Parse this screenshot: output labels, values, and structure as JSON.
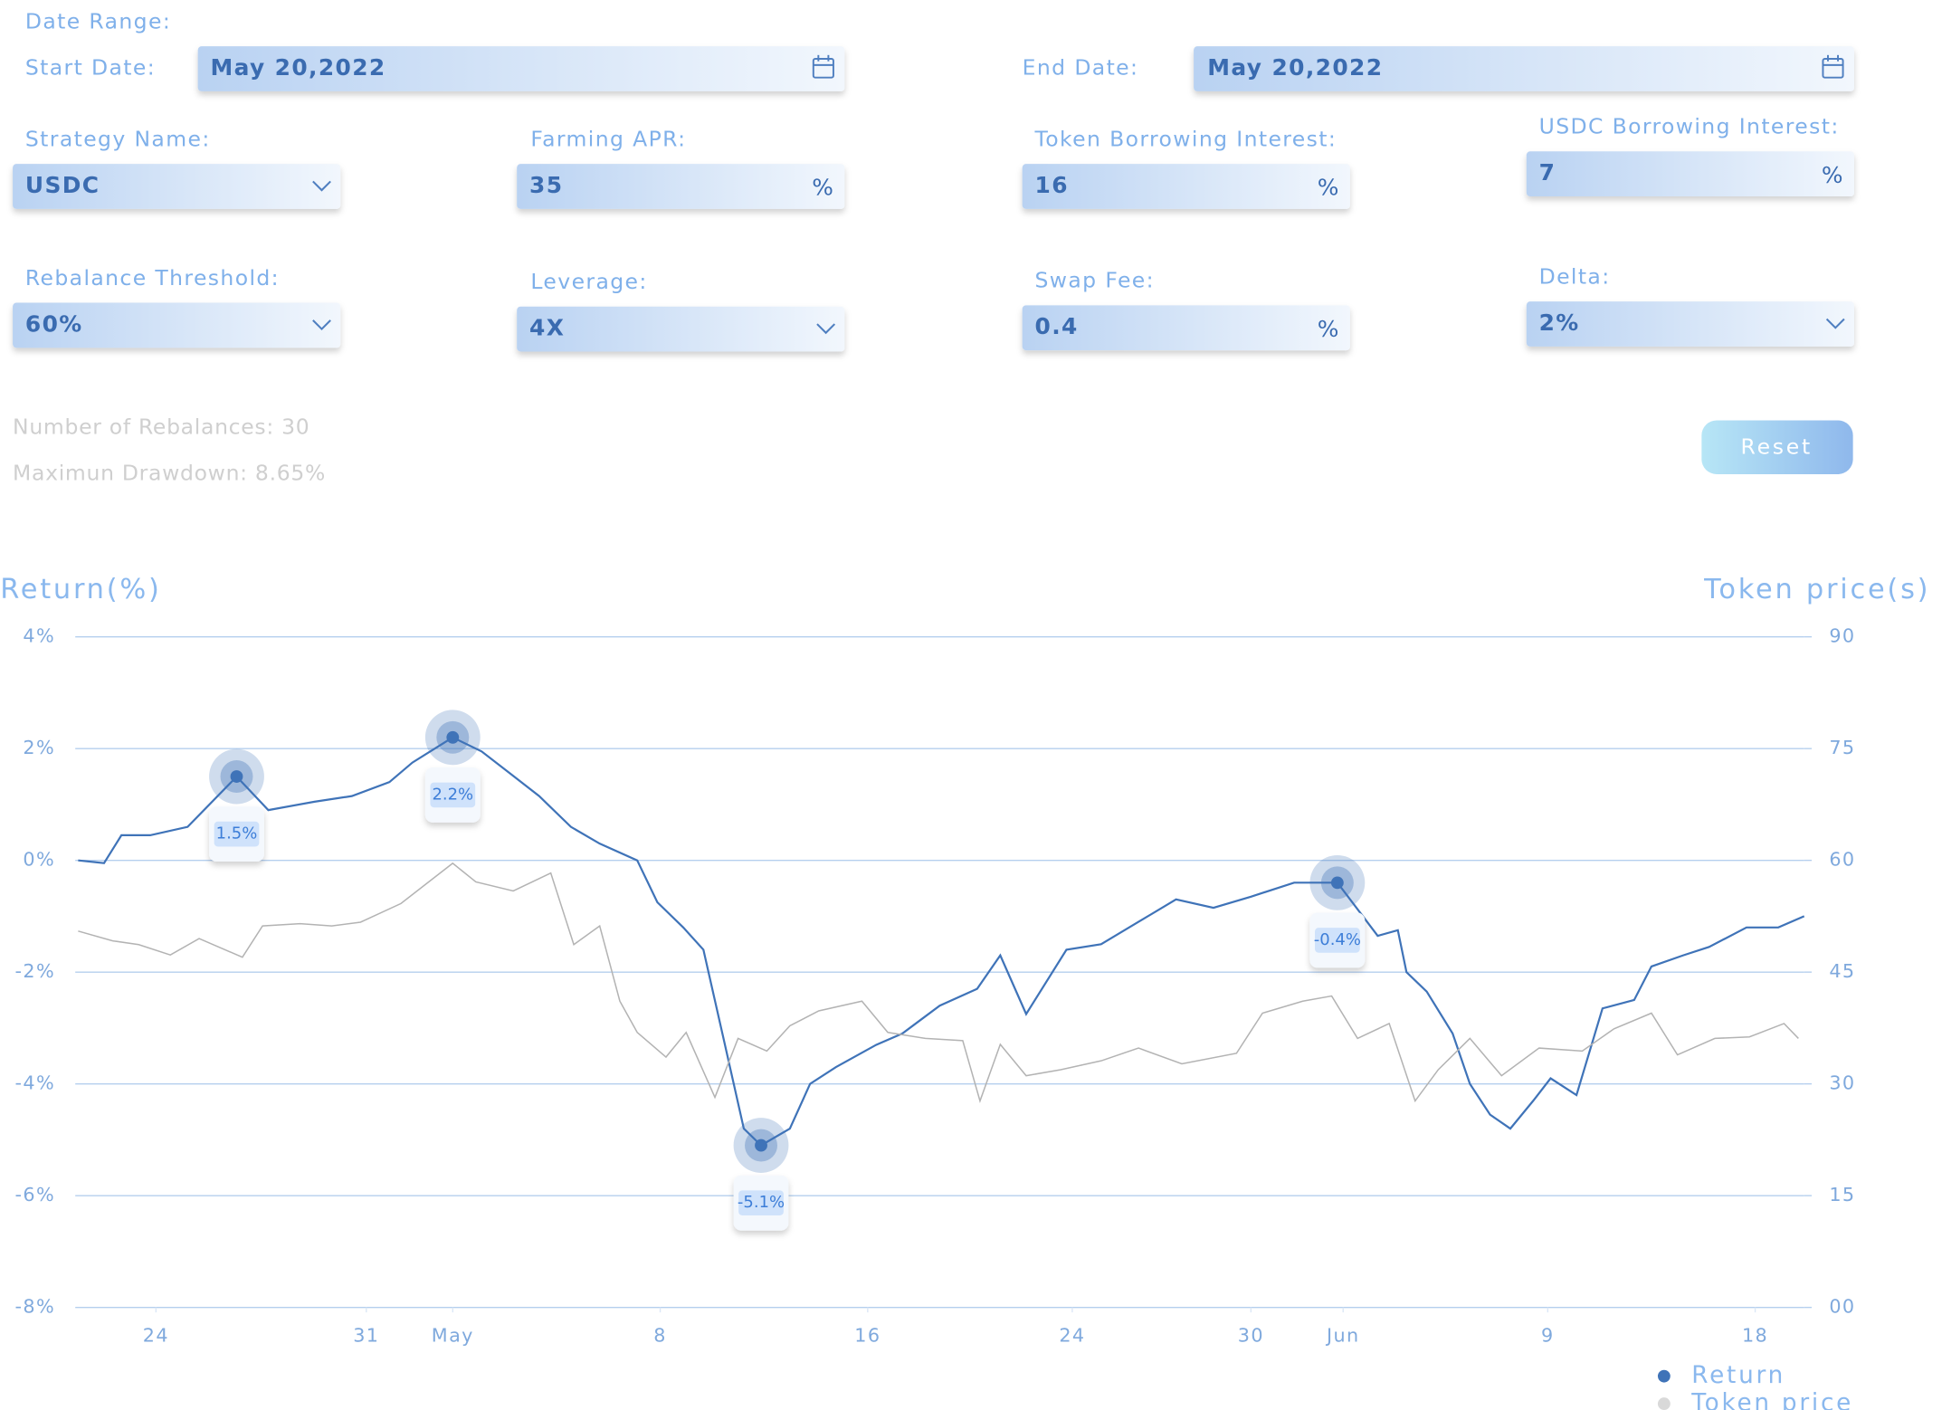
{
  "form": {
    "date_range_label": "Date Range:",
    "start_date": {
      "label": "Start Date:",
      "value": "May 20,2022"
    },
    "end_date": {
      "label": "End Date:",
      "value": "May 20,2022"
    },
    "fields": [
      {
        "label": "Strategy Name:",
        "value": "USDC",
        "dropdown": true
      },
      {
        "label": "Farming APR:",
        "value": "35",
        "unit": "%"
      },
      {
        "label": "Token Borrowing Interest:",
        "value": "16",
        "unit": "%"
      },
      {
        "label": "USDC Borrowing Interest:",
        "value": "7",
        "unit": "%"
      },
      {
        "label": "Rebalance Threshold:",
        "value": "60%",
        "dropdown": true
      },
      {
        "label": "Leverage:",
        "value": "4X",
        "dropdown": true
      },
      {
        "label": "Swap Fee:",
        "value": "0.4",
        "unit": "%"
      },
      {
        "label": "Delta:",
        "value": "2%",
        "dropdown": true
      }
    ],
    "stats": [
      "Number of Rebalances: 30",
      "Maximun Drawdown: 8.65%"
    ],
    "reset_button": "Reset"
  },
  "chart_data": {
    "type": "line",
    "y_label": "Return(%)",
    "y2_label": "Token price(s)",
    "xlim": [
      0,
      60
    ],
    "xticks": [
      {
        "value": 2.8,
        "label": "24"
      },
      {
        "value": 10.1,
        "label": "31"
      },
      {
        "value": 13.1,
        "label": "May"
      },
      {
        "value": 20.3,
        "label": "8"
      },
      {
        "value": 27.5,
        "label": "16"
      },
      {
        "value": 34.6,
        "label": "24"
      },
      {
        "value": 40.8,
        "label": "30"
      },
      {
        "value": 44.0,
        "label": "Jun"
      },
      {
        "value": 51.1,
        "label": "9"
      },
      {
        "value": 58.3,
        "label": "18"
      }
    ],
    "ylim": [
      -8,
      4
    ],
    "yticks": [
      {
        "value": -8,
        "label": "-8%"
      },
      {
        "value": -6,
        "label": "-6%"
      },
      {
        "value": -4,
        "label": "-4%"
      },
      {
        "value": -2,
        "label": "-2%"
      },
      {
        "value": 0,
        "label": "0%"
      },
      {
        "value": 2,
        "label": "2%"
      },
      {
        "value": 4,
        "label": "4%"
      }
    ],
    "y2lim": [
      0,
      90
    ],
    "y2ticks": [
      {
        "value": 0,
        "label": "00"
      },
      15,
      30,
      45,
      60,
      75,
      90
    ],
    "grid": true,
    "series": [
      {
        "name": "Return",
        "color": "#3f73b8",
        "axis": "y",
        "x": [
          0.1,
          1.0,
          1.6,
          2.6,
          3.9,
          5.6,
          6.7,
          8.3,
          9.6,
          10.9,
          11.7,
          13.1,
          14.1,
          15.1,
          16.1,
          17.2,
          18.2,
          19.5,
          20.2,
          21.1,
          21.8,
          22.5,
          23.2,
          23.8,
          24.8,
          25.5,
          26.4,
          27.8,
          28.7,
          30.0,
          31.3,
          32.1,
          33.0,
          34.4,
          35.6,
          36.9,
          38.2,
          39.5,
          40.8,
          42.3,
          43.8,
          45.2,
          45.9,
          46.2,
          46.9,
          47.8,
          48.4,
          49.1,
          49.8,
          50.6,
          51.2,
          52.1,
          53.0,
          54.1,
          54.7,
          55.8,
          56.7,
          58.0,
          59.1,
          60.0
        ],
        "values": [
          0,
          -0.05,
          0.45,
          0.45,
          0.6,
          1.5,
          0.9,
          1.05,
          1.15,
          1.4,
          1.75,
          2.2,
          1.95,
          1.55,
          1.15,
          0.6,
          0.3,
          0.0,
          -0.75,
          -1.2,
          -1.6,
          -3.2,
          -4.8,
          -5.1,
          -4.8,
          -4.0,
          -3.7,
          -3.3,
          -3.1,
          -2.6,
          -2.3,
          -1.7,
          -2.75,
          -1.6,
          -1.5,
          -1.1,
          -0.7,
          -0.85,
          -0.65,
          -0.4,
          -0.4,
          -1.35,
          -1.25,
          -2.0,
          -2.35,
          -3.1,
          -4.0,
          -4.55,
          -4.8,
          -4.3,
          -3.9,
          -4.2,
          -2.65,
          -2.5,
          -1.9,
          -1.7,
          -1.55,
          -1.2,
          -1.2,
          -1.0
        ],
        "value_labels": [
          null,
          null,
          null,
          null,
          null,
          "1.5%",
          null,
          null,
          null,
          null,
          null,
          "2.2%",
          null,
          null,
          null,
          null,
          null,
          null,
          null,
          null,
          null,
          null,
          null,
          "-5.1%",
          null,
          null,
          null,
          null,
          null,
          null,
          null,
          null,
          null,
          null,
          null,
          null,
          null,
          null,
          null,
          null,
          "-0.4%",
          null,
          null,
          null,
          null,
          null,
          null,
          null,
          null,
          null,
          null,
          null,
          null,
          null,
          null,
          null,
          null,
          null,
          null,
          null
        ]
      },
      {
        "name": "Token price",
        "color": "#b3b3b3",
        "axis": "y2",
        "x": [
          0.1,
          1.3,
          2.2,
          3.3,
          4.3,
          5.8,
          6.5,
          7.8,
          8.9,
          9.9,
          11.3,
          13.1,
          13.9,
          15.2,
          16.5,
          17.3,
          18.2,
          18.9,
          19.5,
          20.5,
          21.2,
          22.2,
          23.0,
          24.0,
          24.8,
          25.8,
          27.3,
          28.2,
          29.5,
          30.8,
          31.4,
          32.1,
          33.0,
          34.2,
          35.6,
          36.9,
          38.4,
          40.3,
          41.2,
          42.6,
          43.6,
          44.5,
          45.6,
          46.5,
          47.3,
          48.4,
          49.5,
          50.8,
          52.3,
          53.4,
          54.7,
          55.6,
          56.9,
          58.1,
          59.3,
          59.8
        ],
        "values": [
          50.5,
          49.2,
          48.7,
          47.3,
          49.5,
          47.0,
          51.2,
          51.5,
          51.2,
          51.7,
          54.2,
          59.6,
          57.1,
          55.9,
          58.3,
          48.7,
          51.2,
          41.1,
          36.9,
          33.6,
          36.9,
          28.2,
          36.1,
          34.4,
          37.8,
          39.8,
          41.1,
          36.9,
          36.1,
          35.8,
          27.7,
          35.3,
          31.1,
          31.9,
          33.1,
          34.8,
          32.7,
          34.1,
          39.5,
          41.1,
          41.8,
          36.1,
          38.1,
          27.7,
          31.9,
          36.1,
          31.1,
          34.8,
          34.4,
          37.4,
          39.5,
          33.9,
          36.1,
          36.3,
          38.1,
          36.1
        ]
      }
    ]
  }
}
